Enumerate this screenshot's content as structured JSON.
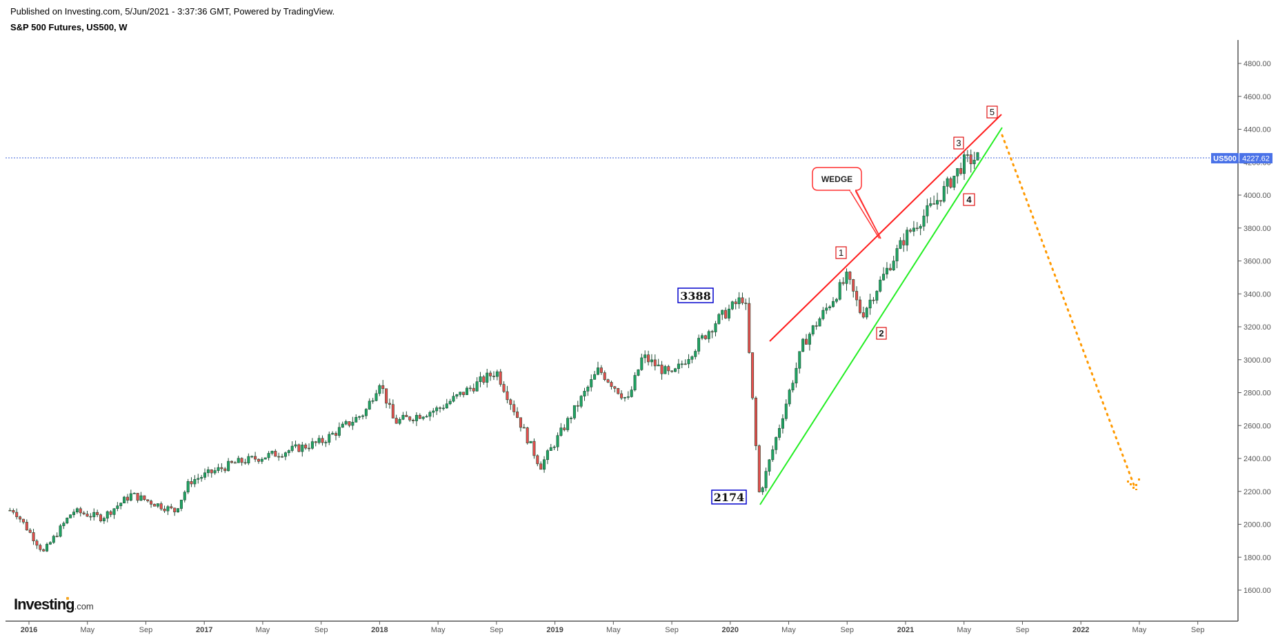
{
  "header": {
    "published": "Published on Investing.com, 5/Jun/2021 - 3:37:36 GMT, Powered by TradingView.",
    "title": "S&P 500 Futures, US500, W"
  },
  "logo": {
    "main": "Investing",
    "suffix": ".com"
  },
  "colors": {
    "up": "#1fa463",
    "down": "#e84d4d",
    "wick": "#1d4b33",
    "upper_trendline": "#ff1a1a",
    "lower_trendline": "#22ee22",
    "projection": "#ff9900",
    "price_line": "#3b62d9",
    "price_tag": "#4a72e8",
    "label_box_blue": "#0000cc",
    "label_box_red": "#e01010"
  },
  "price_tag": {
    "symbol": "US500",
    "value": "4227.62"
  },
  "annotations": {
    "high_label": "3388",
    "low_label": "2174",
    "wedge_label": "WEDGE",
    "waves": [
      "1",
      "2",
      "3",
      "4",
      "5"
    ]
  },
  "chart_data": {
    "type": "candlestick",
    "title": "S&P 500 Futures, US500, W",
    "timeframe": "Weekly",
    "yaxis": {
      "ticks": [
        "1600.00",
        "1800.00",
        "2000.00",
        "2200.00",
        "2400.00",
        "2600.00",
        "2800.00",
        "3000.00",
        "3200.00",
        "3400.00",
        "3600.00",
        "3800.00",
        "4000.00",
        "4200.00",
        "4400.00",
        "4600.00",
        "4800.00"
      ],
      "range": [
        1420,
        4950
      ]
    },
    "xaxis": {
      "ticks": [
        {
          "label": "2016",
          "year": true
        },
        {
          "label": "May"
        },
        {
          "label": "Sep"
        },
        {
          "label": "2017",
          "year": true
        },
        {
          "label": "May"
        },
        {
          "label": "Sep"
        },
        {
          "label": "2018",
          "year": true
        },
        {
          "label": "May"
        },
        {
          "label": "Sep"
        },
        {
          "label": "2019",
          "year": true
        },
        {
          "label": "May"
        },
        {
          "label": "Sep"
        },
        {
          "label": "2020",
          "year": true
        },
        {
          "label": "May"
        },
        {
          "label": "Sep"
        },
        {
          "label": "2021",
          "year": true
        },
        {
          "label": "May"
        },
        {
          "label": "Sep"
        },
        {
          "label": "2022",
          "year": true
        },
        {
          "label": "May"
        },
        {
          "label": "Sep"
        }
      ],
      "range": [
        "2015-12",
        "2022-11"
      ]
    },
    "close_path_anchors": [
      {
        "date": "2015-12",
        "close": 2085
      },
      {
        "date": "2016-02",
        "close": 1830
      },
      {
        "date": "2016-04",
        "close": 2080
      },
      {
        "date": "2016-06",
        "close": 2040
      },
      {
        "date": "2016-08",
        "close": 2180
      },
      {
        "date": "2016-11",
        "close": 2080
      },
      {
        "date": "2016-12",
        "close": 2260
      },
      {
        "date": "2017-03",
        "close": 2370
      },
      {
        "date": "2017-06",
        "close": 2430
      },
      {
        "date": "2017-09",
        "close": 2500
      },
      {
        "date": "2017-12",
        "close": 2680
      },
      {
        "date": "2018-01",
        "close": 2870
      },
      {
        "date": "2018-02",
        "close": 2620
      },
      {
        "date": "2018-05",
        "close": 2700
      },
      {
        "date": "2018-09",
        "close": 2930
      },
      {
        "date": "2018-12",
        "close": 2350
      },
      {
        "date": "2019-04",
        "close": 2940
      },
      {
        "date": "2019-06",
        "close": 2750
      },
      {
        "date": "2019-07",
        "close": 3020
      },
      {
        "date": "2019-09",
        "close": 2900
      },
      {
        "date": "2019-12",
        "close": 3230
      },
      {
        "date": "2020-02",
        "close": 3388
      },
      {
        "date": "2020-03",
        "close": 2174
      },
      {
        "date": "2020-06",
        "close": 3100
      },
      {
        "date": "2020-09",
        "close": 3500
      },
      {
        "date": "2020-10",
        "close": 3270
      },
      {
        "date": "2021-01",
        "close": 3750
      },
      {
        "date": "2021-03",
        "close": 3950
      },
      {
        "date": "2021-05",
        "close": 4200
      },
      {
        "date": "2021-06",
        "close": 4227.62
      }
    ],
    "trendlines": [
      {
        "name": "upper wedge",
        "color": "red",
        "from": {
          "date": "2020-04",
          "price": 3100
        },
        "to": {
          "date": "2021-07",
          "price": 4480
        }
      },
      {
        "name": "lower wedge",
        "color": "green",
        "from": {
          "date": "2020-03",
          "price": 2120
        },
        "to": {
          "date": "2021-07",
          "price": 4400
        }
      },
      {
        "name": "projection",
        "color": "orange",
        "style": "dotted",
        "from": {
          "date": "2021-07",
          "price": 4360
        },
        "to": {
          "date": "2022-05",
          "price": 2220
        }
      }
    ],
    "labels": [
      {
        "text": "3388",
        "price": 3388,
        "date": "2020-01"
      },
      {
        "text": "2174",
        "price": 2174,
        "date": "2020-03"
      },
      {
        "text": "WEDGE"
      },
      {
        "text": "1",
        "date": "2020-09"
      },
      {
        "text": "2",
        "date": "2020-11"
      },
      {
        "text": "3",
        "date": "2021-04"
      },
      {
        "text": "4",
        "date": "2021-05"
      },
      {
        "text": "5",
        "date": "2021-07"
      }
    ],
    "last_price": 4227.62
  }
}
